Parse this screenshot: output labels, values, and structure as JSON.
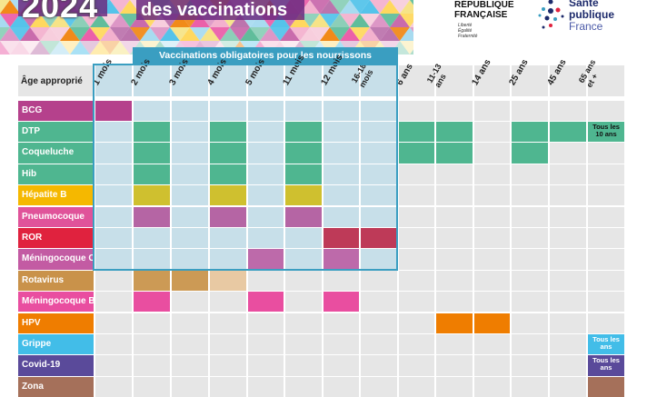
{
  "header": {
    "year": "2024",
    "title": "des vaccinations"
  },
  "logos": {
    "republique": [
      "RÉPUBLIQUE",
      "FRANÇAISE"
    ],
    "motto": [
      "Liberté",
      "Égalité",
      "Fraternité"
    ],
    "spf": [
      "Santé",
      "publique",
      "France"
    ]
  },
  "table": {
    "age_label": "Âge approprié",
    "obligatory_header": "Vaccinations obligatoires pour les nourrissons",
    "columns": [
      "1 mois",
      "2 mois",
      "3 mois",
      "4 mois",
      "5 mois",
      "11 mois",
      "12 mois",
      "16-18 mois",
      "6 ans",
      "11-13 ans",
      "14 ans",
      "25 ans",
      "45 ans",
      "65 ans et +"
    ],
    "rows": [
      {
        "name": "BCG",
        "color": "#b5418c",
        "cells": [
          1,
          0,
          0,
          0,
          0,
          0,
          0,
          0,
          0,
          0,
          0,
          0,
          0,
          0
        ],
        "note": ""
      },
      {
        "name": "DTP",
        "color": "#4fb690",
        "cells": [
          0,
          1,
          0,
          1,
          0,
          1,
          0,
          0,
          1,
          1,
          0,
          1,
          1,
          0
        ],
        "note": "Tous les 10 ans"
      },
      {
        "name": "Coqueluche",
        "color": "#4fb690",
        "cells": [
          0,
          1,
          0,
          1,
          0,
          1,
          0,
          0,
          1,
          1,
          0,
          1,
          0,
          0
        ],
        "note": ""
      },
      {
        "name": "Hib",
        "color": "#4fb690",
        "cells": [
          0,
          1,
          0,
          1,
          0,
          1,
          0,
          0,
          0,
          0,
          0,
          0,
          0,
          0
        ],
        "note": ""
      },
      {
        "name": "Hépatite B",
        "color": "#f5b800",
        "cellColor": "#cfc02f",
        "cells": [
          0,
          1,
          0,
          1,
          0,
          1,
          0,
          0,
          0,
          0,
          0,
          0,
          0,
          0
        ],
        "note": ""
      },
      {
        "name": "Pneumocoque",
        "color": "#e0539a",
        "cellColor": "#b565a4",
        "cells": [
          0,
          1,
          0,
          1,
          0,
          1,
          0,
          0,
          0,
          0,
          0,
          0,
          0,
          0
        ],
        "note": ""
      },
      {
        "name": "ROR",
        "color": "#e0223e",
        "cellColor": "#be3a58",
        "cells": [
          0,
          0,
          0,
          0,
          0,
          0,
          1,
          1,
          0,
          0,
          0,
          0,
          0,
          0
        ],
        "note": ""
      },
      {
        "name": "Méningocoque C",
        "color": "#c35ba3",
        "cellColor": "#bd6aaa",
        "cells": [
          0,
          0,
          0,
          0,
          1,
          0,
          1,
          0,
          0,
          0,
          0,
          0,
          0,
          0
        ],
        "note": ""
      },
      {
        "name": "Rotavirus",
        "color": "#c9924a",
        "cellColor": "#cc9a55",
        "cells": [
          0,
          1,
          1,
          2,
          0,
          0,
          0,
          0,
          0,
          0,
          0,
          0,
          0,
          0
        ],
        "note": ""
      },
      {
        "name": "Méningocoque B",
        "color": "#e94ea0",
        "cellColor": "#e94ea0",
        "cells": [
          0,
          1,
          0,
          0,
          1,
          0,
          1,
          0,
          0,
          0,
          0,
          0,
          0,
          0
        ],
        "note": ""
      },
      {
        "name": "HPV",
        "color": "#ef7d00",
        "cellColor": "#ef7d00",
        "cells": [
          0,
          0,
          0,
          0,
          0,
          0,
          0,
          0,
          0,
          1,
          1,
          0,
          0,
          0
        ],
        "note": ""
      },
      {
        "name": "Grippe",
        "color": "#42bde8",
        "cells": [
          0,
          0,
          0,
          0,
          0,
          0,
          0,
          0,
          0,
          0,
          0,
          0,
          0,
          0
        ],
        "note": "Tous les ans",
        "noteColor": "#42bde8"
      },
      {
        "name": "Covid-19",
        "color": "#5a4a9a",
        "cells": [
          0,
          0,
          0,
          0,
          0,
          0,
          0,
          0,
          0,
          0,
          0,
          0,
          0,
          0
        ],
        "note": "Tous les ans",
        "noteColor": "#5a4a9a"
      },
      {
        "name": "Zona",
        "color": "#a5705a",
        "cells": [
          0,
          0,
          0,
          0,
          0,
          0,
          0,
          0,
          0,
          0,
          0,
          0,
          0,
          0
        ],
        "note": "",
        "noteColor": "#a5705a"
      }
    ]
  }
}
